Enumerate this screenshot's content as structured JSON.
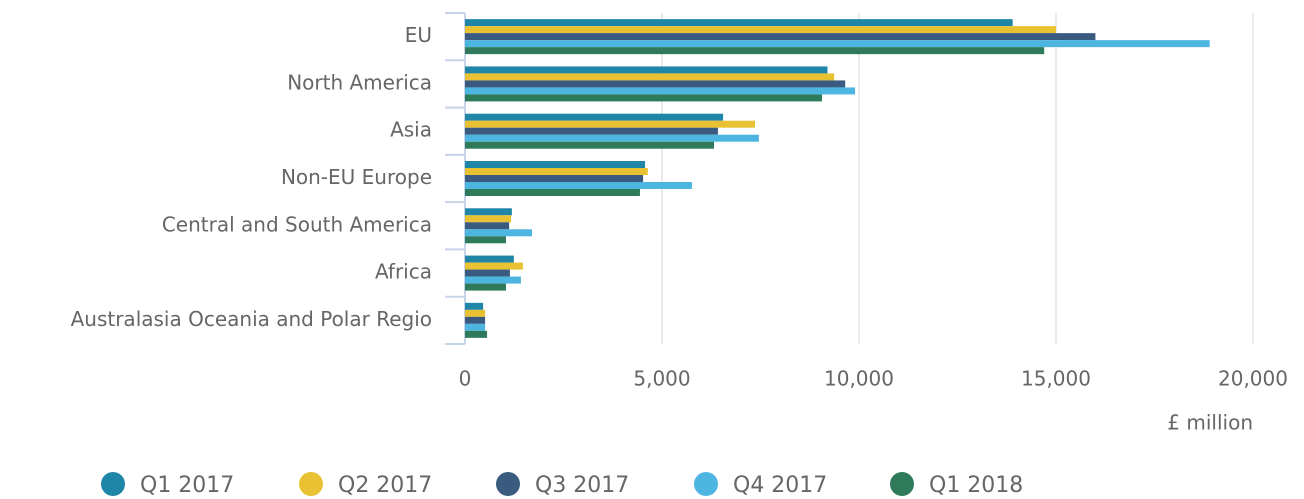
{
  "chart_data": {
    "type": "bar",
    "orientation": "horizontal",
    "categories": [
      "EU",
      "North America",
      "Asia",
      "Non-EU Europe",
      "Central and South America",
      "Africa",
      "Australasia Oceania and Polar Regio"
    ],
    "series": [
      {
        "name": "Q1 2017",
        "color": "#1f86a8",
        "values": [
          13900,
          9200,
          6550,
          4570,
          1190,
          1240,
          460
        ]
      },
      {
        "name": "Q2 2017",
        "color": "#e8c232",
        "values": [
          15000,
          9370,
          7360,
          4640,
          1170,
          1470,
          510
        ]
      },
      {
        "name": "Q3 2017",
        "color": "#3a5a80",
        "values": [
          16000,
          9650,
          6420,
          4520,
          1120,
          1140,
          510
        ]
      },
      {
        "name": "Q4 2017",
        "color": "#4db6e0",
        "values": [
          18900,
          9900,
          7460,
          5760,
          1700,
          1420,
          510
        ]
      },
      {
        "name": "Q1 2018",
        "color": "#2e7a5a",
        "values": [
          14700,
          9060,
          6320,
          4440,
          1040,
          1040,
          560
        ]
      }
    ],
    "xlim": [
      0,
      20000
    ],
    "xticks": [
      0,
      {
        "value": 5000,
        "label": "5,000"
      },
      {
        "value": 10000,
        "label": "10,000"
      },
      {
        "value": 15000,
        "label": "15,000"
      },
      {
        "value": 20000,
        "label": "20,000"
      }
    ],
    "xlabel": "£ million",
    "grid": true,
    "legend": "bottom"
  }
}
